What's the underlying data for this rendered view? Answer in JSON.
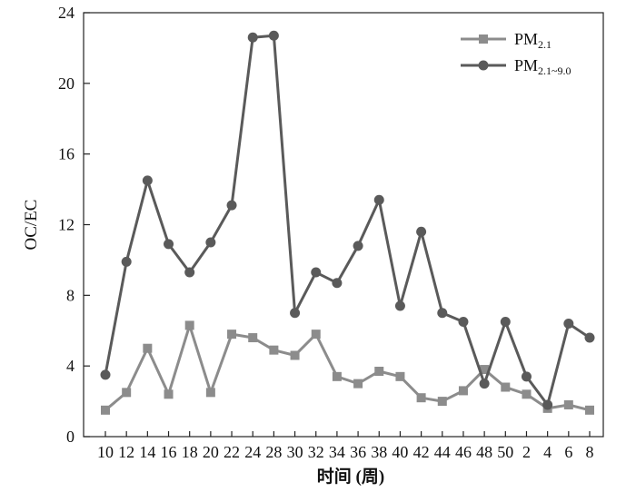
{
  "chart_data": {
    "type": "line",
    "title": "",
    "xlabel": "时间 (周)",
    "ylabel": "OC/EC",
    "ylim": [
      0,
      24
    ],
    "yticks": [
      "0",
      "4",
      "8",
      "12",
      "16",
      "20",
      "24"
    ],
    "categories": [
      "10",
      "12",
      "14",
      "16",
      "18",
      "20",
      "22",
      "24",
      "28",
      "30",
      "32",
      "34",
      "36",
      "38",
      "40",
      "42",
      "44",
      "46",
      "48",
      "50",
      "2",
      "4",
      "6",
      "8"
    ],
    "legend_position": "top-right",
    "grid": false,
    "series": [
      {
        "name": "PM",
        "name_subscript": "2.1",
        "marker": "square",
        "color": "#8c8c8c",
        "values": [
          1.5,
          2.5,
          5.0,
          2.4,
          6.3,
          2.5,
          5.8,
          5.6,
          4.9,
          4.6,
          5.8,
          3.4,
          3.0,
          3.7,
          3.4,
          2.2,
          2.0,
          2.6,
          3.8,
          2.8,
          2.4,
          1.6,
          1.8,
          1.5
        ]
      },
      {
        "name": "PM",
        "name_subscript": "2.1~9.0",
        "marker": "circle",
        "color": "#5a5a5a",
        "values": [
          3.5,
          9.9,
          14.5,
          10.9,
          9.3,
          11.0,
          13.1,
          22.6,
          22.7,
          7.0,
          9.3,
          8.7,
          10.8,
          13.4,
          7.4,
          11.6,
          7.0,
          6.5,
          3.0,
          6.5,
          3.4,
          1.8,
          6.4,
          5.6
        ]
      }
    ]
  }
}
